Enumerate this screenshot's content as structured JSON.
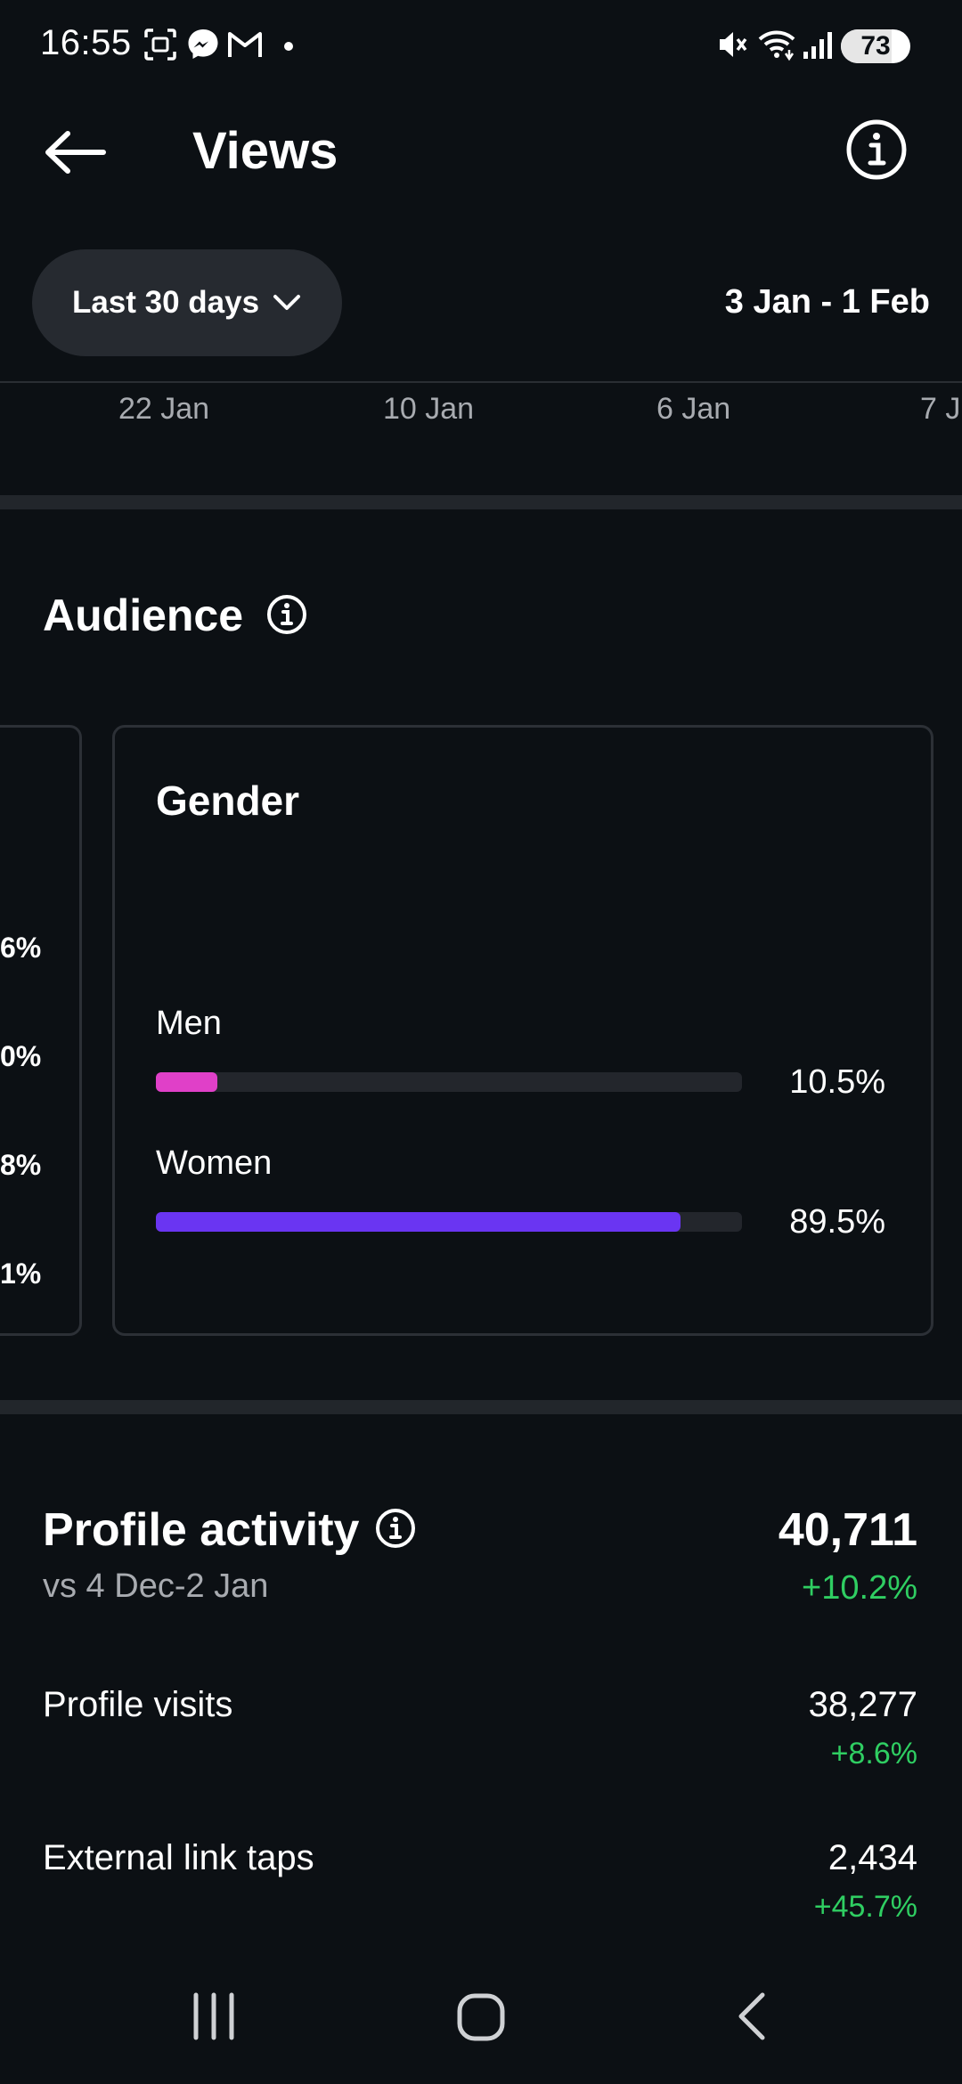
{
  "status_bar": {
    "time": "16:55",
    "battery": "73",
    "battery_level": 73,
    "icons": [
      "screenshot-icon",
      "messenger-icon",
      "gmail-icon",
      "dot-icon",
      "mute-icon",
      "wifi-icon",
      "signal-icon",
      "battery-icon"
    ]
  },
  "header": {
    "title": "Views",
    "back_icon": "arrow-left-icon",
    "info_icon": "info-icon"
  },
  "filters": {
    "period": "Last 30 days",
    "date_range": "3 Jan - 1 Feb"
  },
  "axis_labels": [
    "22 Jan",
    "10 Jan",
    "6 Jan",
    "7 J"
  ],
  "audience": {
    "title": "Audience",
    "left_card_values": [
      "6%",
      "0%",
      "8%",
      "1%"
    ],
    "gender": {
      "title": "Gender",
      "items": [
        {
          "label": "Men",
          "value": "10.5%",
          "fraction": 0.105,
          "color": "#e040c8"
        },
        {
          "label": "Women",
          "value": "89.5%",
          "fraction": 0.895,
          "color": "#6a35f2"
        }
      ]
    }
  },
  "profile_activity": {
    "title": "Profile activity",
    "comparison": "vs 4 Dec-2 Jan",
    "total": "40,711",
    "total_change": "+10.2%",
    "rows": [
      {
        "label": "Profile visits",
        "value": "38,277",
        "change": "+8.6%"
      },
      {
        "label": "External link taps",
        "value": "2,434",
        "change": "+45.7%"
      }
    ]
  },
  "colors": {
    "background": "#0c1014",
    "positive": "#2fce62",
    "men": "#e040c8",
    "women": "#6a35f2"
  }
}
